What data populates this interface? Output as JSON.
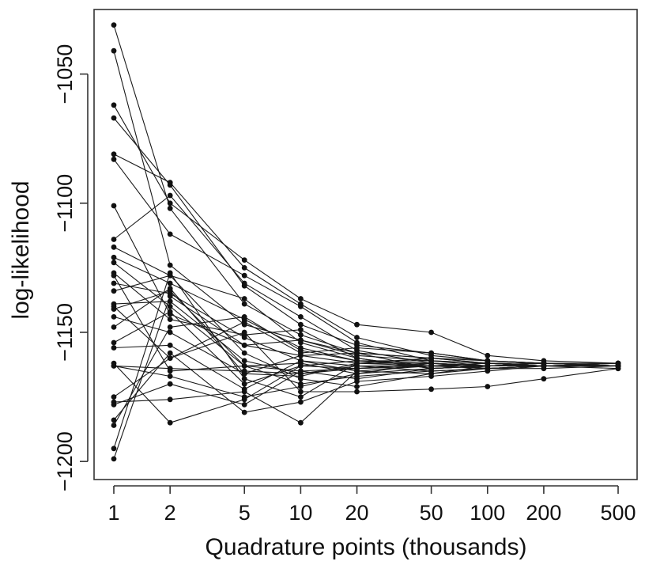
{
  "chart_data": {
    "type": "line",
    "title": "",
    "xlabel": "Quadrature points (thousands)",
    "ylabel": "log-likelihood",
    "x_scale": "log",
    "x": [
      1,
      2,
      5,
      10,
      20,
      50,
      100,
      200,
      500
    ],
    "x_tick_labels": [
      "1",
      "2",
      "5",
      "10",
      "20",
      "50",
      "100",
      "200",
      "500"
    ],
    "y_ticks": [
      -1200,
      -1150,
      -1100,
      -1050
    ],
    "y_tick_labels": [
      "−1200",
      "−1150",
      "−1100",
      "−1050"
    ],
    "ylim": [
      -1207,
      -1025
    ],
    "xlim": [
      0.85,
      560
    ],
    "grid": false,
    "legend": "none",
    "colors": {
      "line": "#1a1a1a",
      "point": "#111111",
      "frame": "#333333"
    },
    "series": [
      {
        "values": [
          -1031,
          -1102,
          -1139,
          -1151,
          -1158,
          -1160,
          -1161,
          -1162,
          -1162
        ]
      },
      {
        "values": [
          -1041,
          -1124,
          -1147,
          -1153,
          -1159,
          -1161,
          -1162,
          -1162,
          -1163
        ]
      },
      {
        "values": [
          -1062,
          -1100,
          -1122,
          -1137,
          -1147,
          -1150,
          -1159,
          -1161,
          -1162
        ]
      },
      {
        "values": [
          -1067,
          -1093,
          -1132,
          -1147,
          -1155,
          -1158,
          -1161,
          -1162,
          -1163
        ]
      },
      {
        "values": [
          -1081,
          -1092,
          -1125,
          -1139,
          -1152,
          -1159,
          -1161,
          -1162,
          -1162
        ]
      },
      {
        "values": [
          -1083,
          -1112,
          -1128,
          -1140,
          -1154,
          -1161,
          -1162,
          -1162,
          -1163
        ]
      },
      {
        "values": [
          -1101,
          -1143,
          -1155,
          -1159,
          -1162,
          -1163,
          -1162,
          -1163,
          -1163
        ]
      },
      {
        "values": [
          -1114,
          -1097,
          -1131,
          -1144,
          -1157,
          -1162,
          -1163,
          -1162,
          -1162
        ]
      },
      {
        "values": [
          -1117,
          -1128,
          -1137,
          -1154,
          -1160,
          -1164,
          -1163,
          -1163,
          -1164
        ]
      },
      {
        "values": [
          -1121,
          -1131,
          -1145,
          -1156,
          -1161,
          -1162,
          -1164,
          -1164,
          -1163
        ]
      },
      {
        "values": [
          -1123,
          -1140,
          -1163,
          -1165,
          -1164,
          -1162,
          -1163,
          -1162,
          -1163
        ]
      },
      {
        "values": [
          -1127,
          -1145,
          -1151,
          -1149,
          -1160,
          -1164,
          -1163,
          -1162,
          -1162
        ]
      },
      {
        "values": [
          -1131,
          -1135,
          -1152,
          -1161,
          -1163,
          -1165,
          -1164,
          -1163,
          -1163
        ]
      },
      {
        "values": [
          -1134,
          -1128,
          -1158,
          -1168,
          -1171,
          -1166,
          -1164,
          -1163,
          -1163
        ]
      },
      {
        "values": [
          -1139,
          -1138,
          -1161,
          -1166,
          -1164,
          -1163,
          -1162,
          -1163,
          -1162
        ]
      },
      {
        "values": [
          -1141,
          -1134,
          -1163,
          -1170,
          -1167,
          -1165,
          -1164,
          -1163,
          -1163
        ]
      },
      {
        "values": [
          -1144,
          -1150,
          -1166,
          -1167,
          -1162,
          -1160,
          -1162,
          -1163,
          -1163
        ]
      },
      {
        "values": [
          -1148,
          -1133,
          -1166,
          -1159,
          -1158,
          -1160,
          -1162,
          -1163,
          -1163
        ]
      },
      {
        "values": [
          -1154,
          -1142,
          -1170,
          -1163,
          -1161,
          -1161,
          -1163,
          -1163,
          -1163
        ]
      },
      {
        "values": [
          -1156,
          -1155,
          -1172,
          -1161,
          -1165,
          -1163,
          -1164,
          -1163,
          -1163
        ]
      },
      {
        "values": [
          -1163,
          -1164,
          -1165,
          -1166,
          -1163,
          -1163,
          -1162,
          -1163,
          -1163
        ]
      },
      {
        "values": [
          -1163,
          -1167,
          -1175,
          -1171,
          -1166,
          -1162,
          -1163,
          -1163,
          -1163
        ]
      },
      {
        "values": [
          -1175,
          -1160,
          -1150,
          -1173,
          -1173,
          -1172,
          -1171,
          -1168,
          -1164
        ]
      },
      {
        "values": [
          -1177,
          -1176,
          -1173,
          -1185,
          -1165,
          -1166,
          -1163,
          -1163,
          -1163
        ]
      },
      {
        "values": [
          -1178,
          -1170,
          -1178,
          -1165,
          -1168,
          -1164,
          -1163,
          -1163,
          -1162
        ]
      },
      {
        "values": [
          -1184,
          -1158,
          -1181,
          -1177,
          -1169,
          -1167,
          -1165,
          -1163,
          -1163
        ]
      },
      {
        "values": [
          -1195,
          -1127,
          -1168,
          -1175,
          -1162,
          -1162,
          -1163,
          -1163,
          -1163
        ]
      },
      {
        "values": [
          -1199,
          -1136,
          -1155,
          -1153,
          -1158,
          -1164,
          -1163,
          -1163,
          -1163
        ]
      },
      {
        "values": [
          -1186,
          -1148,
          -1144,
          -1157,
          -1161,
          -1163,
          -1163,
          -1163,
          -1163
        ]
      },
      {
        "values": [
          -1162,
          -1185,
          -1176,
          -1163,
          -1164,
          -1163,
          -1164,
          -1163,
          -1163
        ]
      },
      {
        "values": [
          -1140,
          -1160,
          -1146,
          -1158,
          -1156,
          -1158,
          -1161,
          -1162,
          -1163
        ]
      },
      {
        "values": [
          -1128,
          -1165,
          -1163,
          -1162,
          -1166,
          -1164,
          -1163,
          -1163,
          -1163
        ]
      }
    ]
  }
}
